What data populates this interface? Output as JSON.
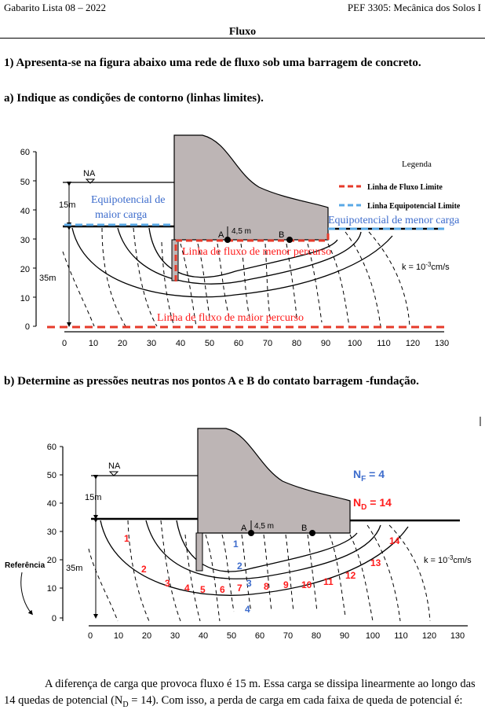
{
  "header": {
    "left": "Gabarito Lista 08 – 2022",
    "right": "PEF 3305: Mecânica dos Solos I"
  },
  "section_title": "Fluxo",
  "question1": "1)  Apresenta-se na figura abaixo uma rede de fluxo sob uma barragem de concreto.",
  "item_a": "a)  Indique as condições de contorno (linhas limites).",
  "item_b": "b)  Determine as pressões neutras nos pontos A e B do contato barragem -fundação.",
  "paragraph": {
    "text_before": "A diferença de carga que provoca fluxo é 15 m. Essa carga se dissipa linearmente ao longo das 14 quedas de potencial (N",
    "sub": "D",
    "text_after": " = 14). Com isso, a perda de carga em cada faixa de queda de potencial é:"
  },
  "colors": {
    "dam": "#bdb5b5",
    "flow_limit": "#e63a2a",
    "equipotential_limit": "#5aa9e6",
    "annotation_blue": "#3d6ccc",
    "annotation_red": "#ff1b1b"
  },
  "figure1": {
    "y_ticks": [
      "60",
      "50",
      "40",
      "30",
      "20",
      "10",
      "0"
    ],
    "x_ticks": [
      "0",
      "10",
      "20",
      "30",
      "40",
      "50",
      "60",
      "70",
      "80",
      "90",
      "100",
      "110",
      "120",
      "130"
    ],
    "na": "NA",
    "dim_15m": "15m",
    "dim_35m": "35m",
    "dim_45m": "4,5 m",
    "point_a": "A",
    "point_b": "B",
    "k_label": "k = 10",
    "k_exp": "-3",
    "k_unit": "cm/s",
    "legend_title": "Legenda",
    "legend_flow": "Linha de Fluxo Limite",
    "legend_equip": "Linha Equipotencial Limite",
    "annot_eq_high_1": "Equipotencial de",
    "annot_eq_high_2": "maior carga",
    "annot_eq_low": "Equipotencial de menor carga",
    "annot_flow_short": "Linha de fluxo de menor percurso",
    "annot_flow_long": "Linha de fluxo de maior percurso"
  },
  "figure2": {
    "y_ticks": [
      "60",
      "50",
      "40",
      "30",
      "20",
      "10",
      "0"
    ],
    "x_ticks": [
      "0",
      "10",
      "20",
      "30",
      "40",
      "50",
      "60",
      "70",
      "80",
      "90",
      "100",
      "110",
      "120",
      "130"
    ],
    "na": "NA",
    "dim_15m": "15m",
    "dim_35m": "35m",
    "dim_45m": "4,5 m",
    "point_a": "A",
    "point_b": "B",
    "k_label": "k = 10",
    "k_exp": "-3",
    "k_unit": "cm/s",
    "nf_label": "N",
    "nf_sub": "F",
    "nf_value": " = 4",
    "nd_label": "N",
    "nd_sub": "D",
    "nd_value": " = 14",
    "referencia": "Referência",
    "channel_numbers": [
      "1",
      "2",
      "3",
      "4"
    ],
    "drop_numbers": [
      "1",
      "2",
      "3",
      "4",
      "5",
      "6",
      "7",
      "8",
      "9",
      "10",
      "11",
      "12",
      "13",
      "14"
    ]
  }
}
